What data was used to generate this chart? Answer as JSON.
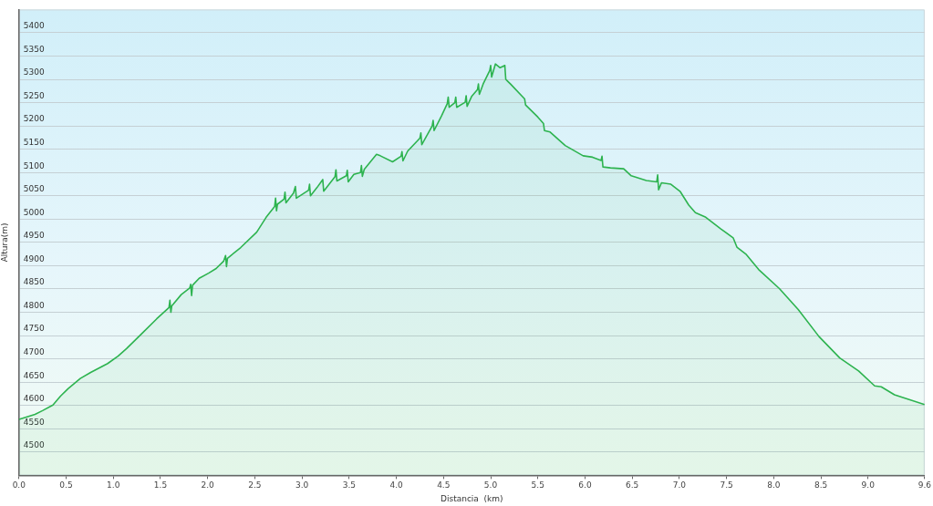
{
  "chart_data": {
    "type": "area",
    "xlabel": "Distancia  (km)",
    "ylabel": "Altura(m)",
    "color": "#2db34f",
    "marker": "none",
    "grid": "y",
    "xlim": [
      0,
      9.6
    ],
    "ylim": [
      4450,
      5450
    ],
    "xticks": [
      {
        "value": 0,
        "label": "0.0"
      },
      0.5,
      {
        "value": 1,
        "label": "1.0"
      },
      1.5,
      {
        "value": 2,
        "label": "2.0"
      },
      2.5,
      {
        "value": 3,
        "label": "3.0"
      },
      3.5,
      {
        "value": 4,
        "label": "4.0"
      },
      4.5,
      {
        "value": 5,
        "label": "5.0"
      },
      5.5,
      {
        "value": 6,
        "label": "6.0"
      },
      6.5,
      {
        "value": 7,
        "label": "7.0"
      },
      7.5,
      {
        "value": 8,
        "label": "8.0"
      },
      8.5,
      {
        "value": 9,
        "label": "9.0"
      },
      9.6
    ],
    "yticks": [
      4500,
      4550,
      4600,
      4650,
      4700,
      4750,
      4800,
      4850,
      4900,
      4950,
      5000,
      5050,
      5100,
      5150,
      5200,
      5250,
      5300,
      5350,
      5400
    ],
    "x": [
      0,
      0.17,
      0.25,
      0.36,
      0.44,
      0.52,
      0.65,
      0.76,
      0.94,
      1.05,
      1.14,
      1.3,
      1.46,
      1.59,
      1.6,
      1.61,
      1.62,
      1.72,
      1.81,
      1.82,
      1.83,
      1.84,
      1.91,
      2.01,
      2.09,
      2.17,
      2.19,
      2.2,
      2.21,
      2.35,
      2.52,
      2.62,
      2.71,
      2.72,
      2.73,
      2.74,
      2.81,
      2.82,
      2.83,
      2.91,
      2.93,
      2.94,
      3.07,
      3.08,
      3.09,
      3.16,
      3.22,
      3.23,
      3.35,
      3.36,
      3.37,
      3.47,
      3.48,
      3.49,
      3.55,
      3.62,
      3.63,
      3.64,
      3.66,
      3.79,
      3.83,
      3.96,
      4.05,
      4.06,
      4.07,
      4.12,
      4.25,
      4.26,
      4.27,
      4.38,
      4.39,
      4.4,
      4.48,
      4.54,
      4.55,
      4.56,
      4.62,
      4.63,
      4.64,
      4.73,
      4.74,
      4.75,
      4.8,
      4.86,
      4.87,
      4.88,
      4.92,
      4.99,
      5,
      5.01,
      5.05,
      5.1,
      5.15,
      5.16,
      5.18,
      5.21,
      5.36,
      5.37,
      5.5,
      5.56,
      5.57,
      5.63,
      5.79,
      5.98,
      6.08,
      6.17,
      6.18,
      6.19,
      6.27,
      6.41,
      6.49,
      6.65,
      6.76,
      6.77,
      6.78,
      6.81,
      6.91,
      7.01,
      7.1,
      7.17,
      7.28,
      7.44,
      7.57,
      7.61,
      7.71,
      7.84,
      8.06,
      8.26,
      8.48,
      8.7,
      8.9,
      9.07,
      9.14,
      9.28,
      9.6
    ],
    "values": [
      4570,
      4581,
      4589,
      4601,
      4620,
      4636,
      4658,
      4671,
      4690,
      4706,
      4722,
      4754,
      4786,
      4810,
      4826,
      4800,
      4814,
      4838,
      4852,
      4860,
      4836,
      4858,
      4873,
      4884,
      4894,
      4910,
      4922,
      4898,
      4916,
      4939,
      4972,
      5004,
      5027,
      5045,
      5018,
      5032,
      5043,
      5058,
      5035,
      5056,
      5070,
      5045,
      5062,
      5075,
      5050,
      5068,
      5085,
      5060,
      5091,
      5106,
      5082,
      5093,
      5105,
      5080,
      5096,
      5100,
      5115,
      5092,
      5107,
      5139,
      5136,
      5123,
      5135,
      5145,
      5125,
      5146,
      5174,
      5185,
      5160,
      5200,
      5212,
      5190,
      5222,
      5248,
      5262,
      5240,
      5250,
      5262,
      5240,
      5251,
      5265,
      5242,
      5264,
      5278,
      5290,
      5268,
      5290,
      5319,
      5330,
      5305,
      5333,
      5325,
      5330,
      5300,
      5296,
      5290,
      5258,
      5245,
      5219,
      5205,
      5190,
      5187,
      5158,
      5136,
      5133,
      5126,
      5135,
      5112,
      5110,
      5108,
      5093,
      5083,
      5080,
      5095,
      5063,
      5078,
      5075,
      5059,
      5030,
      5014,
      5004,
      4979,
      4960,
      4940,
      4924,
      4892,
      4851,
      4806,
      4748,
      4702,
      4674,
      4642,
      4640,
      4623,
      4602
    ]
  }
}
